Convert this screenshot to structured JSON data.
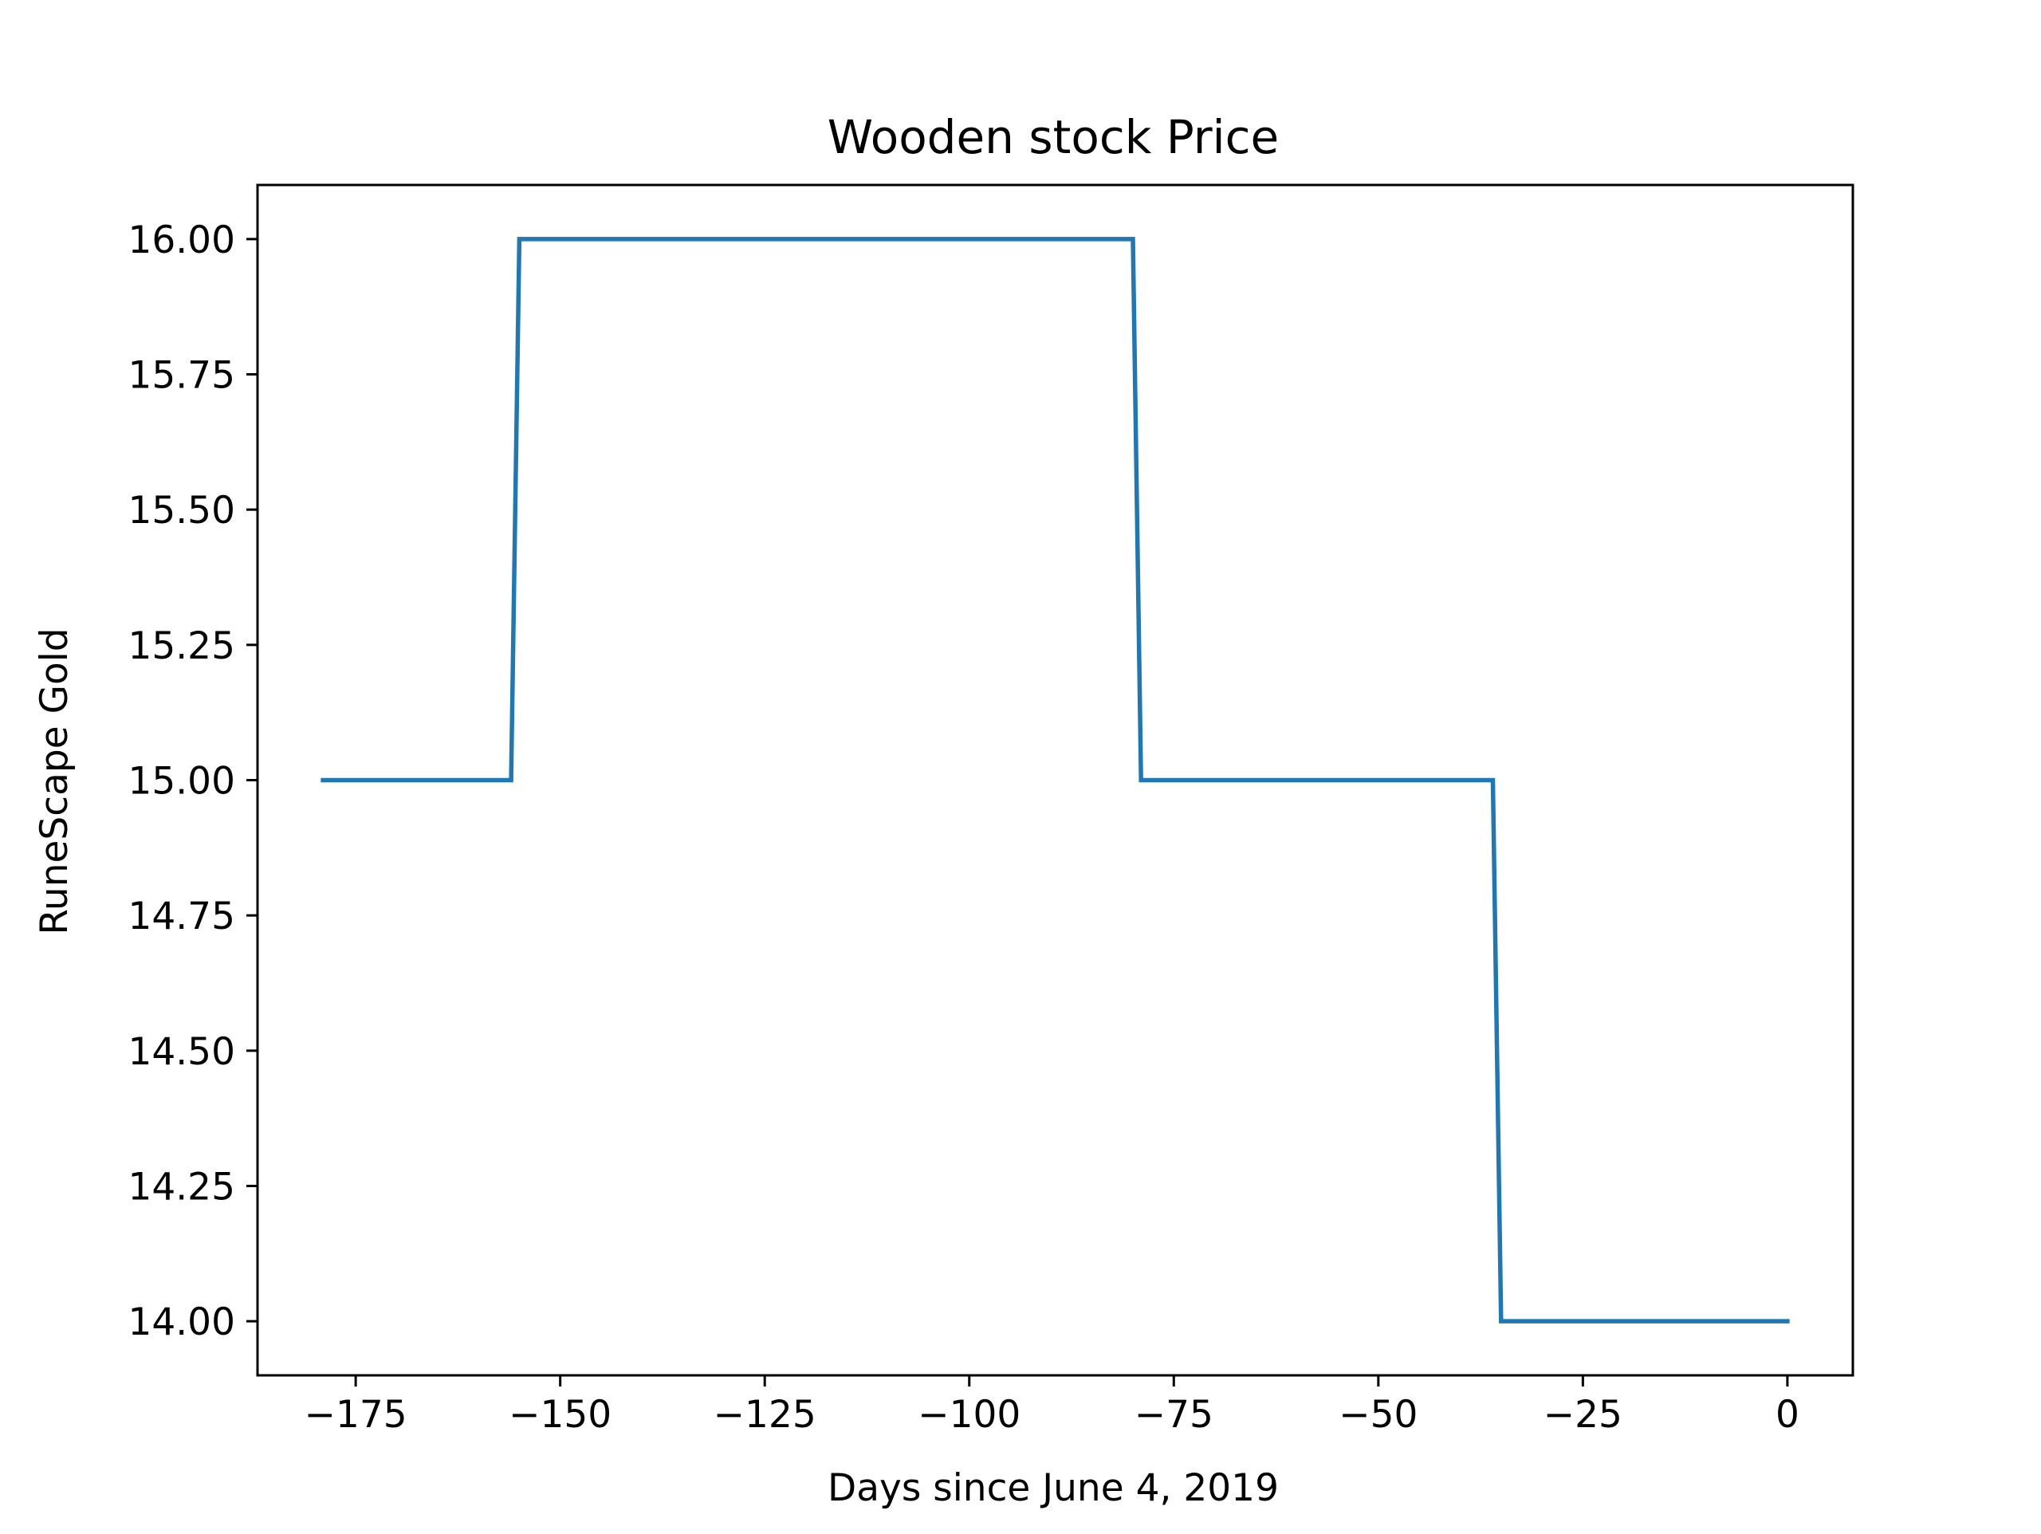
{
  "chart_data": {
    "type": "line",
    "title": "Wooden stock Price",
    "xlabel": "Days since June 4, 2019",
    "ylabel": "RuneScape Gold",
    "xlim": [
      -187,
      8
    ],
    "ylim": [
      13.9,
      16.1
    ],
    "xticks": [
      -175,
      -150,
      -125,
      -100,
      -75,
      -50,
      -25,
      0
    ],
    "xtick_labels": [
      "−175",
      "−150",
      "−125",
      "−100",
      "−75",
      "−50",
      "−25",
      "0"
    ],
    "yticks": [
      14.0,
      14.25,
      14.5,
      14.75,
      15.0,
      15.25,
      15.5,
      15.75,
      16.0
    ],
    "ytick_labels": [
      "14.00",
      "14.25",
      "14.50",
      "14.75",
      "15.00",
      "15.25",
      "15.50",
      "15.75",
      "16.00"
    ],
    "grid": false,
    "series": [
      {
        "color": "#1f77b4",
        "x": [
          -179,
          -156,
          -155,
          -80,
          -79,
          -36,
          -35,
          0
        ],
        "y": [
          15.0,
          15.0,
          16.0,
          16.0,
          15.0,
          15.0,
          14.0,
          14.0
        ]
      }
    ]
  }
}
